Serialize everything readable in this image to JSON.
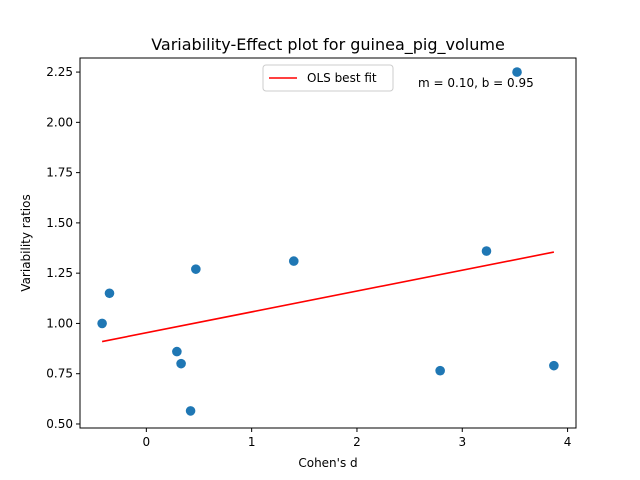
{
  "chart_data": {
    "type": "scatter",
    "title": "Variability-Effect plot for guinea_pig_volume",
    "xlabel": "Cohen's d",
    "ylabel": "Variability ratios",
    "xlim": [
      -0.63,
      4.08
    ],
    "ylim": [
      0.48,
      2.32
    ],
    "x_ticks": [
      0,
      1,
      2,
      3,
      4
    ],
    "y_ticks": [
      0.5,
      0.75,
      1.0,
      1.25,
      1.5,
      1.75,
      2.0,
      2.25
    ],
    "x_tick_labels": [
      "0",
      "1",
      "2",
      "3",
      "4"
    ],
    "y_tick_labels": [
      "0.50",
      "0.75",
      "1.00",
      "1.25",
      "1.50",
      "1.75",
      "2.00",
      "2.25"
    ],
    "grid": false,
    "legend_position": "top-center",
    "points": {
      "color": "#1f77b4",
      "x": [
        -0.42,
        -0.35,
        0.29,
        0.33,
        0.42,
        0.47,
        1.4,
        2.79,
        3.23,
        3.52,
        3.87
      ],
      "y": [
        1.0,
        1.15,
        0.86,
        0.8,
        0.565,
        1.27,
        1.31,
        0.765,
        1.36,
        2.25,
        0.79
      ]
    },
    "fit_line": {
      "name": "OLS best fit",
      "color": "#ff0000",
      "slope": 0.1,
      "intercept": 0.95,
      "x": [
        -0.42,
        3.87
      ],
      "y": [
        0.91,
        1.355
      ]
    },
    "annotation": "m = 0.10, b = 0.95"
  }
}
